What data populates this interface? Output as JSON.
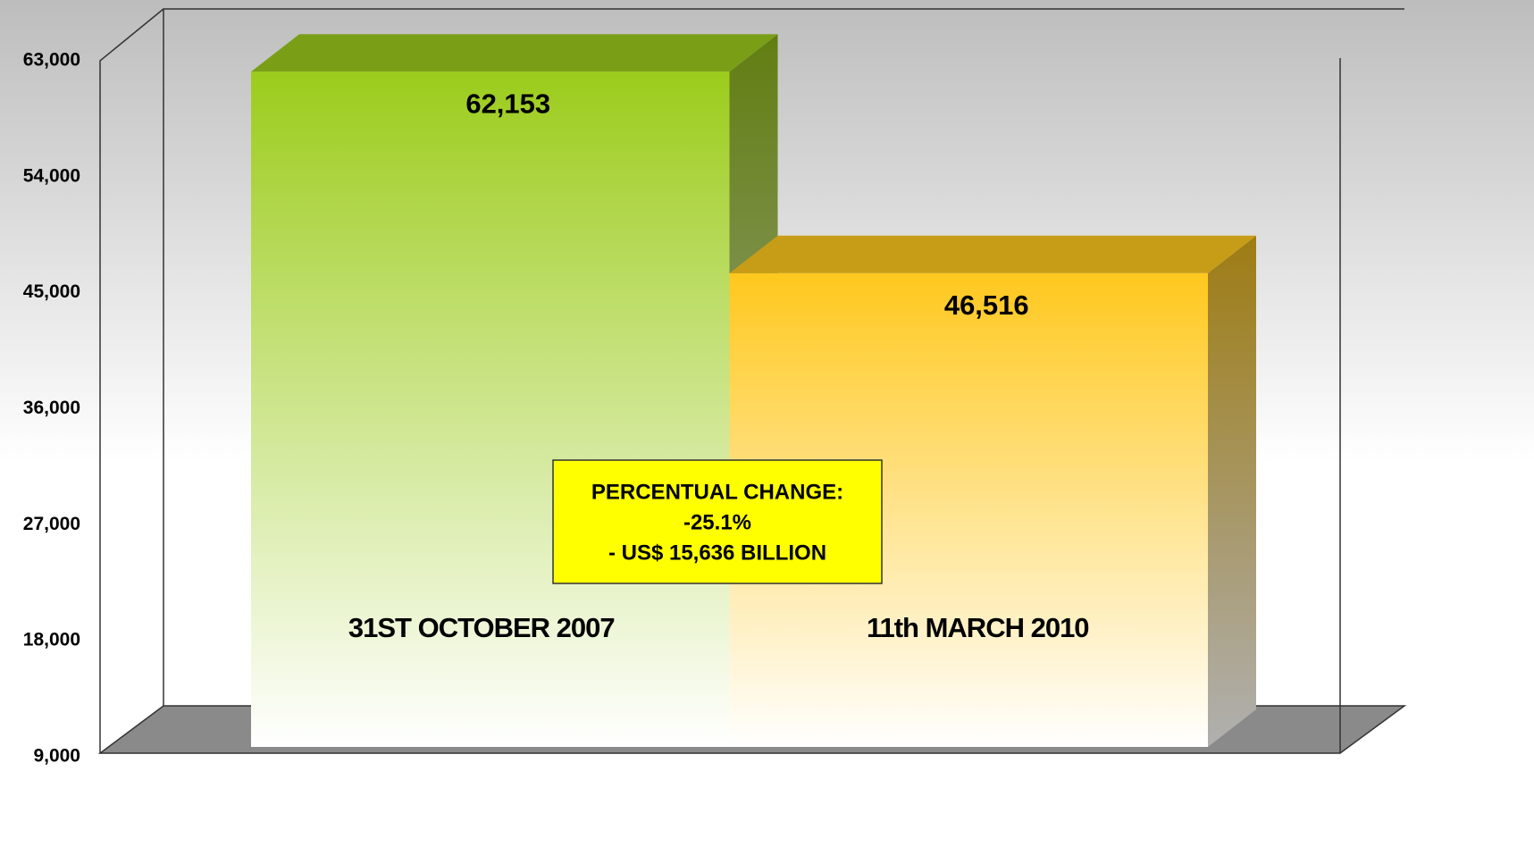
{
  "chart_data": {
    "type": "bar3d",
    "categories": [
      "31ST OCTOBER 2007",
      "11th MARCH 2010"
    ],
    "values": [
      62153,
      46516
    ],
    "value_labels": [
      "62,153",
      "46,516"
    ],
    "colors": [
      "#9ccc1c",
      "#ffc81e"
    ],
    "ylim": [
      9000,
      63000
    ],
    "yticks": [
      {
        "value": 9000,
        "label": "9,000"
      },
      {
        "value": 18000,
        "label": "18,000"
      },
      {
        "value": 27000,
        "label": "27,000"
      },
      {
        "value": 36000,
        "label": "36,000"
      },
      {
        "value": 45000,
        "label": "45,000"
      },
      {
        "value": 54000,
        "label": "54,000"
      },
      {
        "value": 63000,
        "label": "63,000"
      }
    ],
    "annotation": [
      "PERCENTUAL CHANGE:",
      "-25.1%",
      "- US$ 15,636  BILLION"
    ]
  }
}
